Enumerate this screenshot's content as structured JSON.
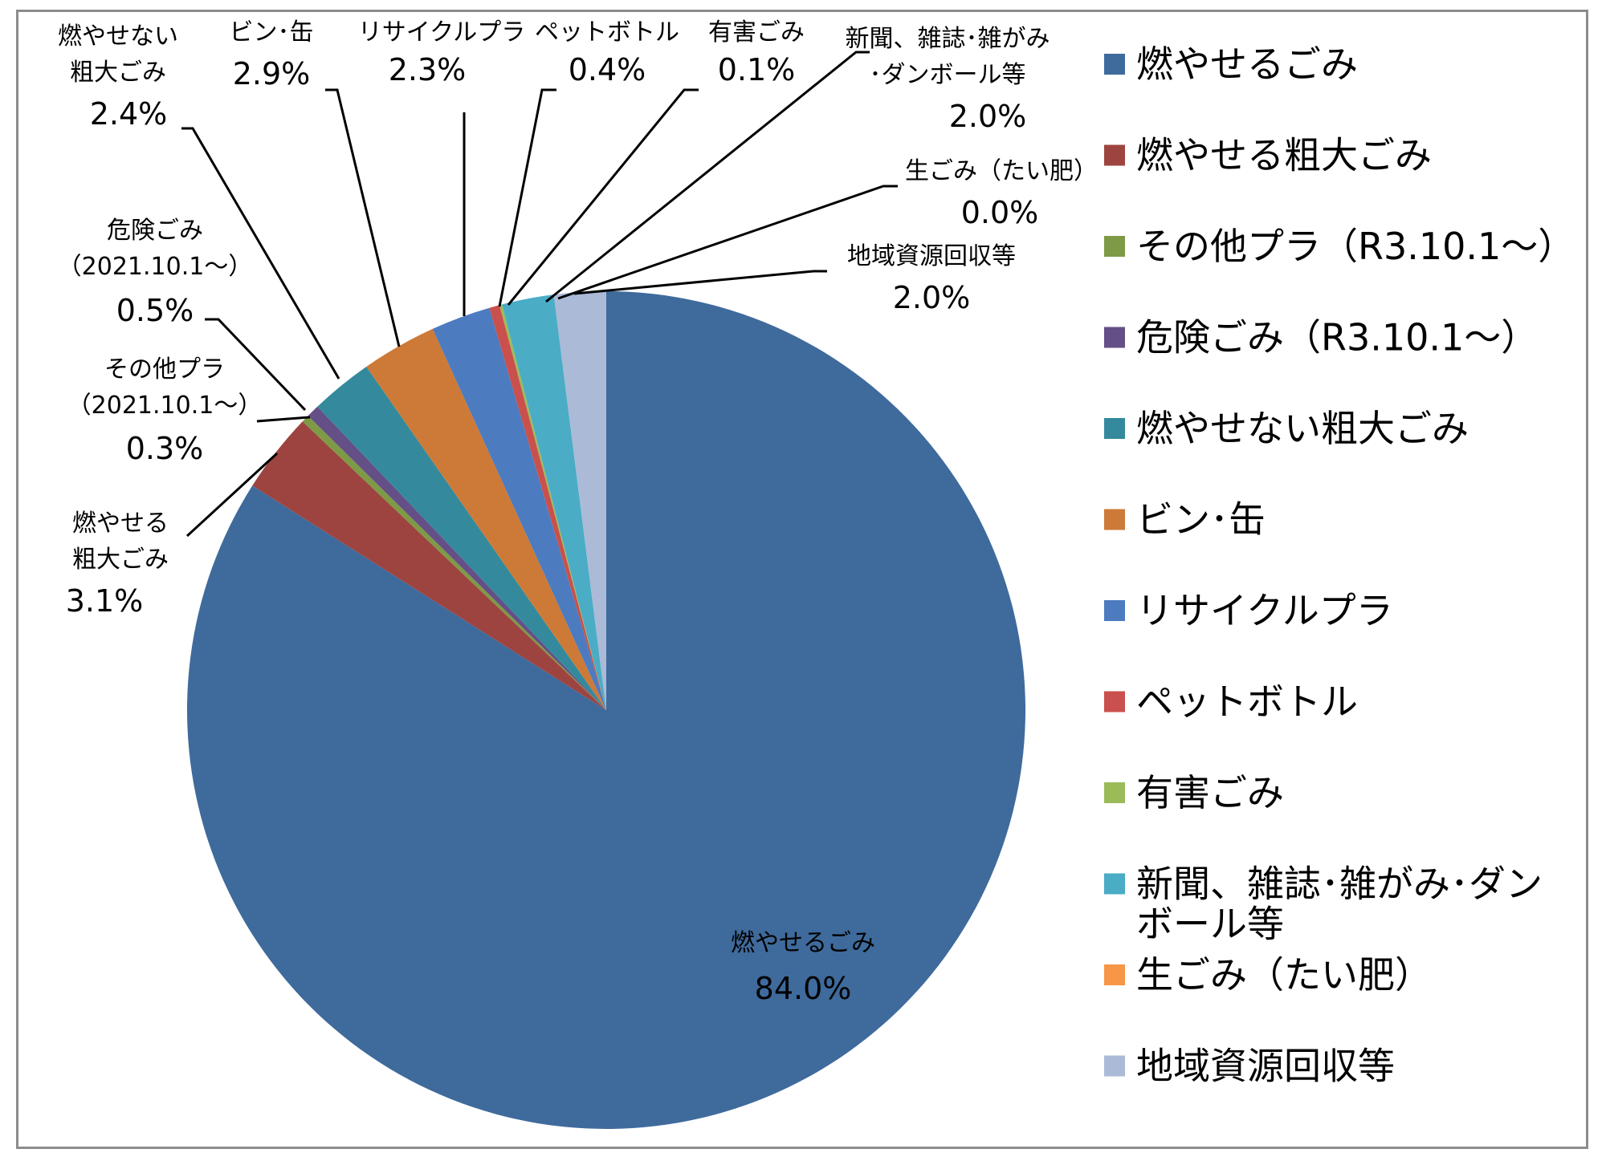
{
  "chart_data": {
    "type": "pie",
    "title": "",
    "slices": [
      {
        "name": "燃やせるごみ",
        "value": 84.0,
        "display": "84.0%",
        "color": "#3F6A9C",
        "label_lines": [
          "燃やせるごみ"
        ]
      },
      {
        "name": "燃やせる粗大ごみ",
        "value": 3.1,
        "display": "3.1%",
        "color": "#9E4440",
        "label_lines": [
          "燃やせる",
          "粗大ごみ"
        ]
      },
      {
        "name": "その他プラ（R3.10.1～）",
        "value": 0.3,
        "display": "0.3%",
        "color": "#7E9A46",
        "label_lines": [
          "その他プラ",
          "（2021.10.1～）"
        ]
      },
      {
        "name": "危険ごみ（R3.10.1～）",
        "value": 0.5,
        "display": "0.5%",
        "color": "#644F86",
        "label_lines": [
          "危険ごみ",
          "（2021.10.1～）"
        ]
      },
      {
        "name": "燃やせない粗大ごみ",
        "value": 2.4,
        "display": "2.4%",
        "color": "#348A9C",
        "label_lines": [
          "燃やせない",
          "粗大ごみ"
        ]
      },
      {
        "name": "ビン・缶",
        "value": 2.9,
        "display": "2.9%",
        "color": "#CD7A38",
        "label_lines": [
          "ビン･缶"
        ]
      },
      {
        "name": "リサイクルプラ",
        "value": 2.3,
        "display": "2.3%",
        "color": "#4C7BC0",
        "label_lines": [
          "リサイクルプラ"
        ]
      },
      {
        "name": "ペットボトル",
        "value": 0.4,
        "display": "0.4%",
        "color": "#C9504C",
        "label_lines": [
          "ペットボトル"
        ]
      },
      {
        "name": "有害ごみ",
        "value": 0.1,
        "display": "0.1%",
        "color": "#9BBB59",
        "label_lines": [
          "有害ごみ"
        ]
      },
      {
        "name": "新聞、雑誌・雑がみ・ダンボール等",
        "value": 2.0,
        "display": "2.0%",
        "color": "#4AACC5",
        "label_lines": [
          "新聞、雑誌･雑がみ",
          "･ダンボール等"
        ]
      },
      {
        "name": "生ごみ（たい肥）",
        "value": 0.0,
        "display": "0.0%",
        "color": "#F79646",
        "label_lines": [
          "生ごみ（たい肥）"
        ]
      },
      {
        "name": "地域資源回収等",
        "value": 2.0,
        "display": "2.0%",
        "color": "#AABAD7",
        "label_lines": [
          "地域資源回収等"
        ]
      }
    ],
    "legend": {
      "position": "right",
      "entries": [
        {
          "lines": [
            "燃やせるごみ"
          ],
          "color": "#3F6A9C"
        },
        {
          "lines": [
            "燃やせる粗大ごみ"
          ],
          "color": "#9E4440"
        },
        {
          "lines": [
            "その他プラ（R3.10.1～）"
          ],
          "color": "#7E9A46"
        },
        {
          "lines": [
            "危険ごみ（R3.10.1～）"
          ],
          "color": "#644F86"
        },
        {
          "lines": [
            "燃やせない粗大ごみ"
          ],
          "color": "#348A9C"
        },
        {
          "lines": [
            "ビン･缶"
          ],
          "color": "#CD7A38"
        },
        {
          "lines": [
            "リサイクルプラ"
          ],
          "color": "#4C7BC0"
        },
        {
          "lines": [
            "ペットボトル"
          ],
          "color": "#C9504C"
        },
        {
          "lines": [
            "有害ごみ"
          ],
          "color": "#9BBB59"
        },
        {
          "lines": [
            "新聞、雑誌･雑がみ･ダン",
            "ボール等"
          ],
          "color": "#4AACC5"
        },
        {
          "lines": [
            "生ごみ（たい肥）"
          ],
          "color": "#F79646"
        },
        {
          "lines": [
            "地域資源回収等"
          ],
          "color": "#AABAD7"
        }
      ]
    }
  }
}
